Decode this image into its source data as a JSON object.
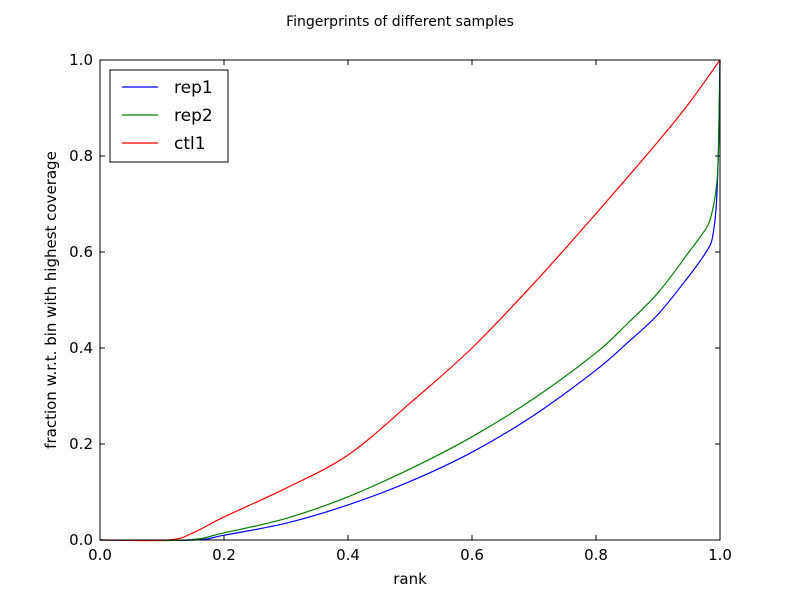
{
  "chart_data": {
    "type": "line",
    "title": "Fingerprints of different samples",
    "xlabel": "rank",
    "ylabel": "fraction w.r.t. bin with highest coverage",
    "xlim": [
      0,
      1
    ],
    "ylim": [
      0,
      1
    ],
    "xticks": [
      "0.0",
      "0.2",
      "0.4",
      "0.6",
      "0.8",
      "1.0"
    ],
    "yticks": [
      "0.0",
      "0.2",
      "0.4",
      "0.6",
      "0.8",
      "1.0"
    ],
    "grid": false,
    "legend_position": "top-left",
    "series": [
      {
        "name": "rep1",
        "color": "#0000ff",
        "x": [
          0,
          0.15,
          0.2,
          0.3,
          0.4,
          0.5,
          0.6,
          0.7,
          0.8,
          0.85,
          0.9,
          0.95,
          0.97,
          0.98,
          0.987,
          0.993,
          0.996,
          0.998,
          1.0
        ],
        "y": [
          0,
          0,
          0.01,
          0.035,
          0.073,
          0.122,
          0.183,
          0.26,
          0.354,
          0.41,
          0.47,
          0.55,
          0.585,
          0.605,
          0.625,
          0.68,
          0.75,
          0.85,
          1.0
        ]
      },
      {
        "name": "rep2",
        "color": "#008000",
        "x": [
          0,
          0.14,
          0.2,
          0.3,
          0.4,
          0.5,
          0.6,
          0.7,
          0.8,
          0.85,
          0.9,
          0.95,
          0.97,
          0.982,
          0.99,
          0.995,
          0.998,
          1.0
        ],
        "y": [
          0,
          0,
          0.015,
          0.045,
          0.09,
          0.148,
          0.215,
          0.295,
          0.39,
          0.45,
          0.515,
          0.6,
          0.635,
          0.66,
          0.7,
          0.745,
          0.83,
          1.0
        ]
      },
      {
        "name": "ctl1",
        "color": "#ff0000",
        "x": [
          0,
          0.11,
          0.15,
          0.2,
          0.3,
          0.4,
          0.5,
          0.6,
          0.7,
          0.8,
          0.9,
          0.95,
          1.0
        ],
        "y": [
          0,
          0,
          0.015,
          0.048,
          0.108,
          0.177,
          0.285,
          0.4,
          0.535,
          0.68,
          0.83,
          0.91,
          1.0
        ]
      }
    ]
  }
}
